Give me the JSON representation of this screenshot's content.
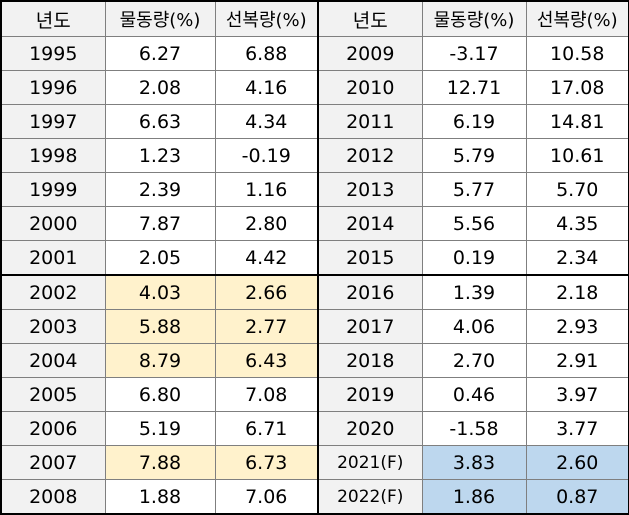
{
  "headers": [
    "년도",
    "물동량(%)",
    "선복량(%)",
    "년도",
    "물동량(%)",
    "선복량(%)"
  ],
  "rows": [
    {
      "y1": "1995",
      "v1": "6.27",
      "s1": "6.88",
      "y2": "2009",
      "v2": "-3.17",
      "s2": "10.58"
    },
    {
      "y1": "1996",
      "v1": "2.08",
      "s1": "4.16",
      "y2": "2010",
      "v2": "12.71",
      "s2": "17.08"
    },
    {
      "y1": "1997",
      "v1": "6.63",
      "s1": "4.34",
      "y2": "2011",
      "v2": "6.19",
      "s2": "14.81"
    },
    {
      "y1": "1998",
      "v1": "1.23",
      "s1": "-0.19",
      "y2": "2012",
      "v2": "5.79",
      "s2": "10.61"
    },
    {
      "y1": "1999",
      "v1": "2.39",
      "s1": "1.16",
      "y2": "2013",
      "v2": "5.77",
      "s2": "5.70"
    },
    {
      "y1": "2000",
      "v1": "7.87",
      "s1": "2.80",
      "y2": "2014",
      "v2": "5.56",
      "s2": "4.35"
    },
    {
      "y1": "2001",
      "v1": "2.05",
      "s1": "4.42",
      "y2": "2015",
      "v2": "0.19",
      "s2": "2.34"
    },
    {
      "y1": "2002",
      "v1": "4.03",
      "s1": "2.66",
      "y2": "2016",
      "v2": "1.39",
      "s2": "2.18"
    },
    {
      "y1": "2003",
      "v1": "5.88",
      "s1": "2.77",
      "y2": "2017",
      "v2": "4.06",
      "s2": "2.93"
    },
    {
      "y1": "2004",
      "v1": "8.79",
      "s1": "6.43",
      "y2": "2018",
      "v2": "2.70",
      "s2": "2.91"
    },
    {
      "y1": "2005",
      "v1": "6.80",
      "s1": "7.08",
      "y2": "2019",
      "v2": "0.46",
      "s2": "3.97"
    },
    {
      "y1": "2006",
      "v1": "5.19",
      "s1": "6.71",
      "y2": "2020",
      "v2": "-1.58",
      "s2": "3.77"
    },
    {
      "y1": "2007",
      "v1": "7.88",
      "s1": "6.73",
      "y2": "2021(F)",
      "v2": "3.83",
      "s2": "2.60"
    },
    {
      "y1": "2008",
      "v1": "1.88",
      "s1": "7.06",
      "y2": "2022(F)",
      "v2": "1.86",
      "s2": "0.87"
    }
  ],
  "colors": {
    "header_bg": "#f2f2f2",
    "highlight_yellow": "#fff2cc",
    "highlight_blue": "#bdd7ee",
    "border": "#7f7f7f"
  }
}
